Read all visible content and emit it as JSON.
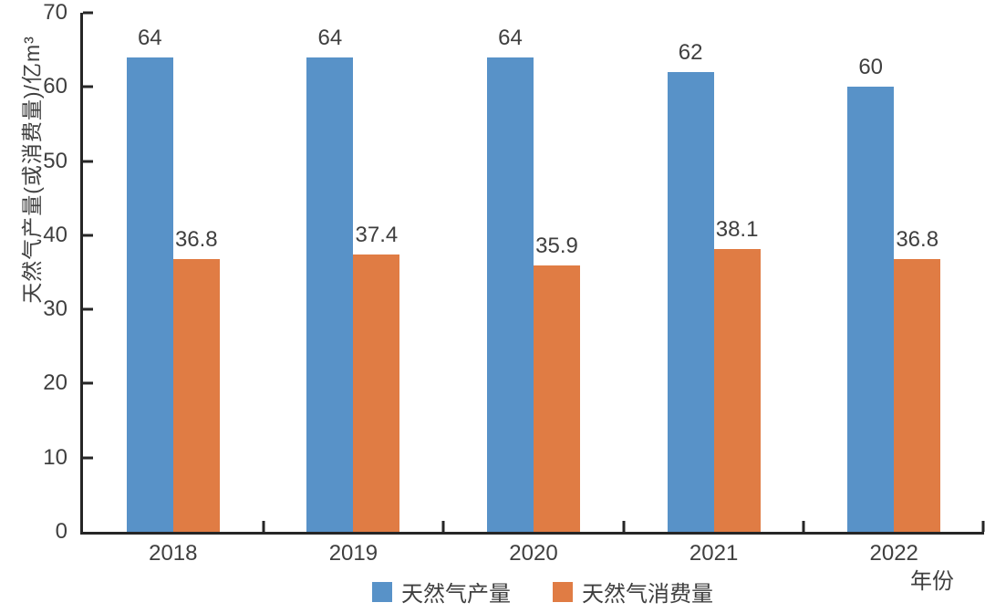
{
  "chart_data": {
    "type": "bar",
    "title": "",
    "categories": [
      "2018",
      "2019",
      "2020",
      "2021",
      "2022"
    ],
    "series": [
      {
        "name": "天然气产量",
        "color": "#5892C8",
        "values": [
          64,
          64,
          64,
          62,
          60
        ],
        "labels": [
          "64",
          "64",
          "64",
          "62",
          "60"
        ]
      },
      {
        "name": "天然气消费量",
        "color": "#E07C44",
        "values": [
          36.8,
          37.4,
          35.9,
          38.1,
          36.8
        ],
        "labels": [
          "36.8",
          "37.4",
          "35.9",
          "38.1",
          "36.8"
        ]
      }
    ],
    "xlabel": "年份",
    "ylabel": "天然气产量(或消费量)/亿m³",
    "ylim": [
      0,
      70
    ],
    "yticks": [
      0,
      10,
      20,
      30,
      40,
      50,
      60,
      70
    ],
    "grid": false,
    "legend_position": "bottom",
    "axis_color": "#262626",
    "text_color": "#3f3f3f"
  }
}
